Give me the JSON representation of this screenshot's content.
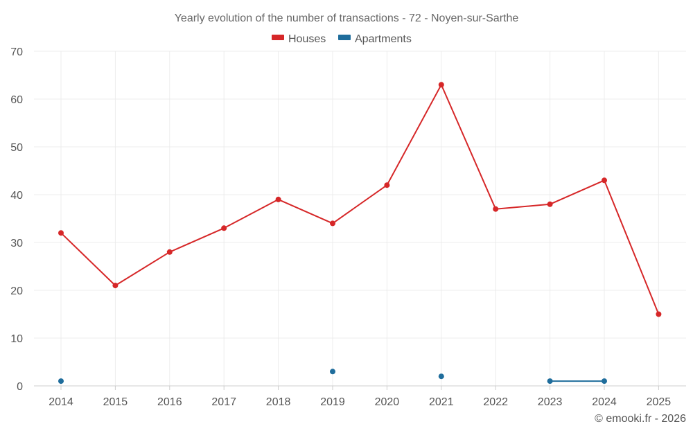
{
  "colors": {
    "houses": "#d62728",
    "apartments": "#1f6d9c",
    "grid": "#ececec",
    "text": "#555555"
  },
  "chart_data": {
    "type": "line",
    "title": "Yearly evolution of the number of transactions - 72 - Noyen-sur-Sarthe",
    "categories": [
      "2014",
      "2015",
      "2016",
      "2017",
      "2018",
      "2019",
      "2020",
      "2021",
      "2022",
      "2023",
      "2024",
      "2025"
    ],
    "series": [
      {
        "name": "Houses",
        "key": "houses",
        "values": [
          32,
          21,
          28,
          33,
          39,
          34,
          42,
          63,
          37,
          38,
          43,
          15
        ]
      },
      {
        "name": "Apartments",
        "key": "apartments",
        "values": [
          1,
          null,
          null,
          null,
          null,
          3,
          null,
          2,
          null,
          1,
          1,
          null
        ]
      }
    ],
    "yticks": [
      0,
      10,
      20,
      30,
      40,
      50,
      60,
      70
    ],
    "ylim": [
      0,
      70
    ],
    "legend_position": "top-center",
    "grid": true
  },
  "credit": "© emooki.fr - 2026"
}
